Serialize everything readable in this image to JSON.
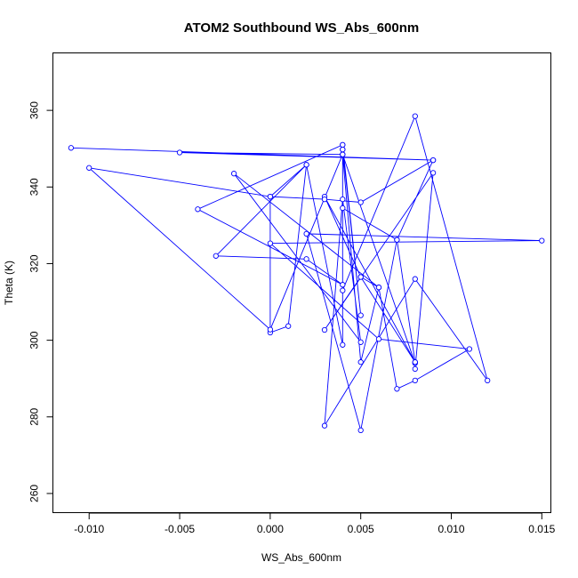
{
  "chart_data": {
    "type": "line",
    "title": "ATOM2 Southbound WS_Abs_600nm",
    "xlabel": "WS_Abs_600nm",
    "ylabel": "Theta (K)",
    "xlim": [
      -0.012,
      0.0155
    ],
    "ylim": [
      255,
      375
    ],
    "xticks": [
      -0.01,
      -0.005,
      0.0,
      0.005,
      0.01,
      0.015
    ],
    "xtick_labels": [
      "-0.010",
      "-0.005",
      "0.000",
      "0.005",
      "0.010",
      "0.015"
    ],
    "yticks": [
      260,
      280,
      300,
      320,
      340,
      360
    ],
    "ytick_labels": [
      "260",
      "280",
      "300",
      "320",
      "340",
      "360"
    ],
    "grid": false,
    "legend": "none",
    "series_color": "#0000ff",
    "series": [
      {
        "marker": "open-circle",
        "x": [
          -0.011,
          0.009,
          -0.005,
          0.004,
          0.008,
          0.008,
          0.009,
          0.003,
          0.005,
          0.003,
          0.008,
          0.007,
          0.004,
          0.004,
          0.002,
          0.001,
          0.0,
          0.0,
          -0.01,
          0.0,
          0.004,
          0.004,
          0.005,
          0.004,
          0.004,
          0.008,
          0.012,
          0.008,
          0.003,
          0.004,
          0.005,
          -0.002,
          0.006,
          0.007,
          0.008,
          0.011,
          0.006,
          0.0,
          0.015,
          0.002,
          0.005,
          0.007,
          0.009,
          0.005,
          0.003,
          0.0,
          0.002,
          -0.003,
          0.002,
          0.004,
          -0.004,
          0.004,
          0.004,
          0.004,
          0.005,
          0.006,
          0.005,
          0.008
        ],
        "y": [
          350.2,
          347.0,
          349.0,
          348.5,
          294.0,
          292.5,
          343.7,
          302.7,
          316.5,
          337.5,
          294.3,
          326.2,
          334.5,
          298.8,
          345.8,
          303.7,
          302.0,
          337.5,
          345.0,
          302.8,
          348.5,
          349.8,
          306.5,
          351.0,
          313.0,
          358.5,
          289.5,
          316.0,
          277.7,
          336.8,
          299.5,
          343.5,
          313.8,
          287.3,
          289.5,
          297.7,
          300.3,
          325.3,
          326.0,
          327.8,
          276.5,
          326.2,
          347.0,
          336.0,
          336.8,
          337.5,
          345.8,
          322.0,
          321.2,
          314.5,
          334.2,
          351.0,
          349.8,
          348.5,
          294.3,
          313.8,
          316.5,
          294.3
        ]
      }
    ]
  }
}
